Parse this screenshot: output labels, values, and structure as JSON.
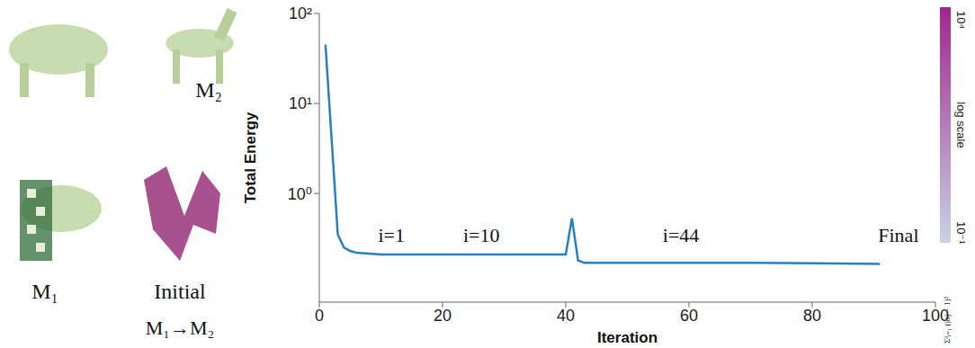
{
  "chart_data": {
    "type": "line",
    "x_label": "Iteration",
    "y_label": "Total Energy",
    "x": [
      1,
      2,
      3,
      4,
      5,
      6,
      8,
      10,
      20,
      30,
      40,
      41,
      42,
      43,
      50,
      60,
      70,
      80,
      91
    ],
    "values": [
      45,
      4,
      0.35,
      0.25,
      0.23,
      0.22,
      0.215,
      0.21,
      0.21,
      0.21,
      0.21,
      0.53,
      0.18,
      0.17,
      0.17,
      0.17,
      0.17,
      0.168,
      0.165
    ],
    "color": "#2a7fc1",
    "xlim": [
      0,
      100
    ],
    "xticks": [
      0,
      20,
      40,
      60,
      80,
      100
    ],
    "ylim": [
      0.062,
      100
    ],
    "yticks": [
      {
        "value": 1,
        "label": "10⁰"
      },
      {
        "value": 10,
        "label": "10¹"
      },
      {
        "value": 100,
        "label": "10²"
      }
    ],
    "log": "y",
    "grid": false,
    "annotations": [
      "i=1",
      "i=10",
      "i=44",
      "Final"
    ],
    "colorbar": {
      "label": "log scale",
      "title": "Σ³ᵢ₌₁ (|σᵢ| − 1)²",
      "range": [
        0.1,
        10000
      ],
      "ticks": [
        {
          "value": 0.1,
          "label": "10⁻¹"
        },
        {
          "value": 10000,
          "label": "10⁴"
        }
      ],
      "colors": [
        "#c9d3e6",
        "#a0268f"
      ]
    }
  },
  "figure_labels": {
    "source": "M₁",
    "target": "M₂",
    "initial": "Initial",
    "mapping": "M₁→M₂"
  }
}
